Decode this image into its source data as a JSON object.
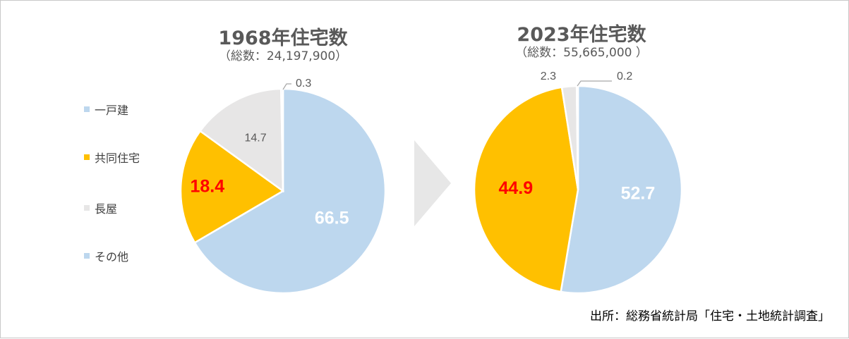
{
  "colors": {
    "detached": "#bdd7ee",
    "apartment": "#ffc000",
    "rowhouse": "#e7e6e6",
    "other": "#bdd7ee",
    "highlight_label": "#ff0000",
    "arrow": "#e7e7e7"
  },
  "legend": [
    "一戸建",
    "共同住宅",
    "長屋",
    "その他"
  ],
  "source": "出所：総務省統計局「住宅・土地統計調査」",
  "chart_data": [
    {
      "type": "pie",
      "title": "1968年住宅数",
      "subtitle": "（総数：24,197,900）",
      "categories": [
        "一戸建",
        "共同住宅",
        "長屋",
        "その他"
      ],
      "values": [
        66.5,
        18.4,
        14.7,
        0.3
      ],
      "data_labels": [
        "66.5",
        "18.4",
        "14.7",
        "0.3"
      ]
    },
    {
      "type": "pie",
      "title": "2023年住宅数",
      "subtitle": "（総数：55,665,000 ）",
      "categories": [
        "一戸建",
        "共同住宅",
        "長屋",
        "その他"
      ],
      "values": [
        52.7,
        44.9,
        2.3,
        0.2
      ],
      "data_labels": [
        "52.7",
        "44.9",
        "2.3",
        "0.2"
      ]
    }
  ]
}
